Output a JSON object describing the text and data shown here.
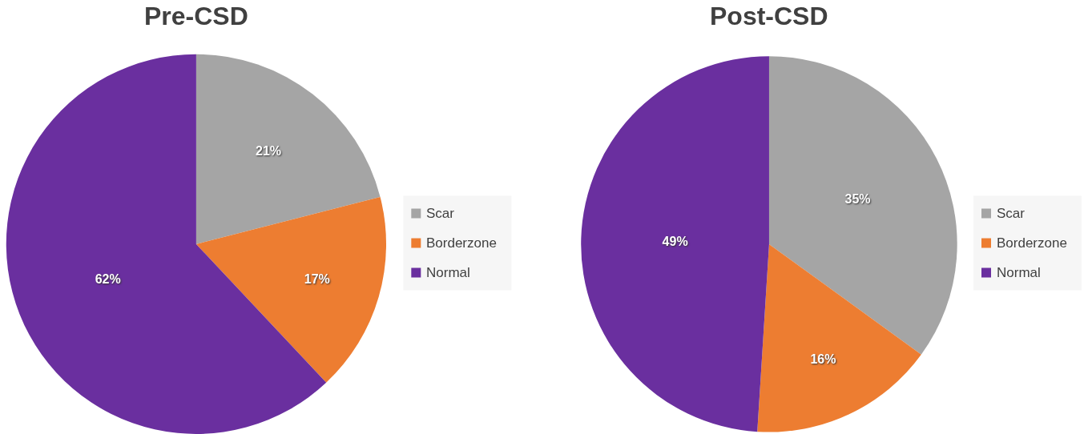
{
  "chart_data": [
    {
      "type": "pie",
      "title": "Pre-CSD",
      "categories": [
        "Scar",
        "Borderzone",
        "Normal"
      ],
      "values": [
        21,
        17,
        62
      ],
      "colors": [
        "#a5a5a5",
        "#ed7d31",
        "#6a2f9f"
      ],
      "value_labels": [
        "21%",
        "17%",
        "62%"
      ],
      "legend": "right"
    },
    {
      "type": "pie",
      "title": "Post-CSD",
      "categories": [
        "Scar",
        "Borderzone",
        "Normal"
      ],
      "values": [
        35,
        16,
        49
      ],
      "colors": [
        "#a5a5a5",
        "#ed7d31",
        "#6a2f9f"
      ],
      "value_labels": [
        "35%",
        "16%",
        "49%"
      ],
      "legend": "right"
    }
  ]
}
